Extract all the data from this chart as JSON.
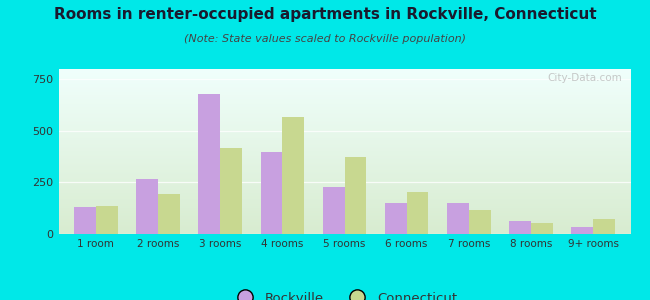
{
  "title": "Rooms in renter-occupied apartments in Rockville, Connecticut",
  "subtitle": "(Note: State values scaled to Rockville population)",
  "categories": [
    "1 room",
    "2 rooms",
    "3 rooms",
    "4 rooms",
    "5 rooms",
    "6 rooms",
    "7 rooms",
    "8 rooms",
    "9+ rooms"
  ],
  "rockville": [
    130,
    265,
    680,
    400,
    230,
    150,
    150,
    65,
    35
  ],
  "connecticut": [
    135,
    195,
    415,
    565,
    375,
    205,
    115,
    55,
    75
  ],
  "rockville_color": "#c8a0e0",
  "connecticut_color": "#c8d890",
  "bg_outer": "#00e8e8",
  "bg_chart_topleft": "#f0fffc",
  "bg_chart_bottomright": "#d8ecd0",
  "ylim": [
    0,
    800
  ],
  "yticks": [
    0,
    250,
    500,
    750
  ],
  "legend_rockville": "Rockville",
  "legend_connecticut": "Connecticut",
  "watermark": "City-Data.com"
}
